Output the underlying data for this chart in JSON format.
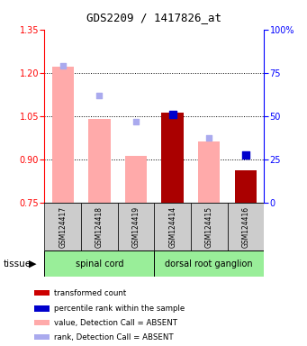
{
  "title": "GDS2209 / 1417826_at",
  "samples": [
    "GSM124417",
    "GSM124418",
    "GSM124419",
    "GSM124414",
    "GSM124415",
    "GSM124416"
  ],
  "bar_values": [
    1.22,
    1.04,
    0.91,
    1.06,
    0.96,
    0.86
  ],
  "bar_colors": [
    "#ffaaaa",
    "#ffaaaa",
    "#ffaaaa",
    "#aa0000",
    "#ffaaaa",
    "#aa0000"
  ],
  "rank_values": [
    1.225,
    1.12,
    1.03,
    1.055,
    0.975,
    0.915
  ],
  "rank_colors": [
    "#aaaaee",
    "#aaaaee",
    "#aaaaee",
    "#0000cc",
    "#aaaaee",
    "#0000cc"
  ],
  "rank_is_present": [
    false,
    false,
    false,
    true,
    false,
    true
  ],
  "ymin": 0.75,
  "ymax": 1.35,
  "yticks": [
    0.75,
    0.9,
    1.05,
    1.2,
    1.35
  ],
  "y2min": 0,
  "y2max": 100,
  "y2ticks": [
    0,
    25,
    50,
    75,
    100
  ],
  "y2labels": [
    "0",
    "25",
    "50",
    "75",
    "100%"
  ],
  "bar_width": 0.6,
  "tissue_color": "#99ee99",
  "sample_box_color": "#cccccc",
  "tissue_groups": [
    {
      "label": "spinal cord",
      "start": 0,
      "end": 2
    },
    {
      "label": "dorsal root ganglion",
      "start": 3,
      "end": 5
    }
  ],
  "legend_items": [
    {
      "color": "#cc0000",
      "label": "transformed count"
    },
    {
      "color": "#0000cc",
      "label": "percentile rank within the sample"
    },
    {
      "color": "#ffaaaa",
      "label": "value, Detection Call = ABSENT"
    },
    {
      "color": "#aaaaee",
      "label": "rank, Detection Call = ABSENT"
    }
  ]
}
